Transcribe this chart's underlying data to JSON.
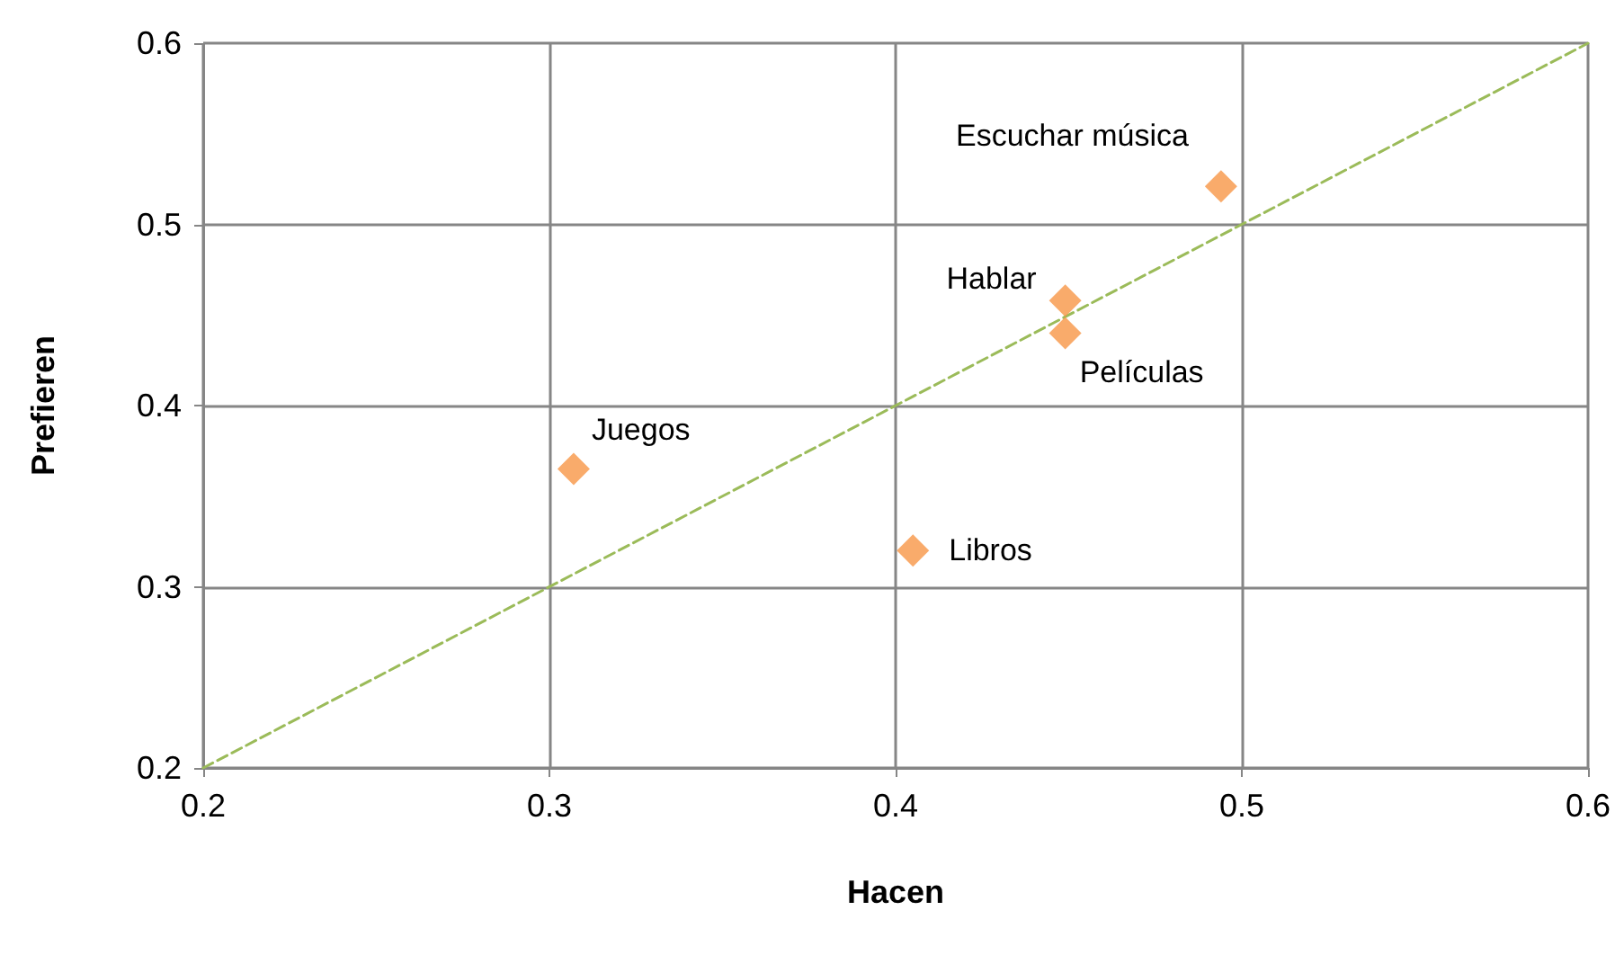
{
  "chart_data": {
    "type": "scatter",
    "xlabel": "Hacen",
    "ylabel": "Prefieren",
    "xlim": [
      0.2,
      0.6
    ],
    "xticks": [
      0.2,
      0.3,
      0.4,
      0.5,
      0.6
    ],
    "ylim": [
      0.2,
      0.6
    ],
    "yticks": [
      0.2,
      0.3,
      0.4,
      0.5,
      0.6
    ],
    "grid": true,
    "marker": "diamond",
    "series": [
      {
        "color": "#f79646",
        "x": [
          0.494,
          0.449,
          0.449,
          0.307,
          0.405
        ],
        "values": [
          0.521,
          0.458,
          0.44,
          0.365,
          0.32
        ]
      },
      {
        "type": "line",
        "color": "#9bbb59",
        "line_style": "dashed",
        "marker": "none",
        "x": [
          0.2,
          0.6
        ],
        "values": [
          0.2,
          0.6
        ]
      }
    ],
    "annotations": [
      {
        "text": "Escuchar música",
        "x": 0.494,
        "y": 0.521
      },
      {
        "text": "Hablar",
        "x": 0.449,
        "y": 0.458
      },
      {
        "text": "Películas",
        "x": 0.449,
        "y": 0.44
      },
      {
        "text": "Juegos",
        "x": 0.307,
        "y": 0.365
      },
      {
        "text": "Libros",
        "x": 0.405,
        "y": 0.32
      }
    ]
  }
}
